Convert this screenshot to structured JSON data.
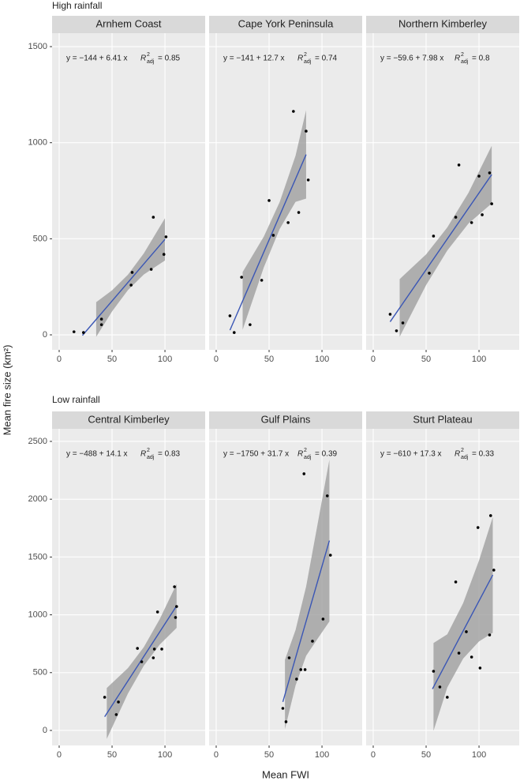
{
  "groups": [
    {
      "title": "High rainfall"
    },
    {
      "title": "Low rainfall"
    }
  ],
  "y_label": "Mean fire size (km²)",
  "x_label": "Mean FWI",
  "chart_data": [
    {
      "type": "scatter",
      "title": "Arnhem Coast",
      "equation": "y = −144 + 6.41 x",
      "r2": {
        "symbol": "R",
        "sup": "2",
        "sub": "adj",
        "value": "= 0.85"
      },
      "x": [
        14,
        23,
        40,
        40,
        69,
        68,
        89,
        87,
        99,
        101
      ],
      "values": [
        16,
        12,
        82,
        53,
        325,
        259,
        612,
        341,
        419,
        510
      ],
      "fit": {
        "intercept": -144,
        "slope": 6.41,
        "x": [
          22,
          100
        ]
      },
      "band": {
        "x": [
          35,
          50,
          65,
          80,
          100
        ],
        "lower": [
          -10,
          122,
          233,
          314,
          387
        ],
        "upper": [
          170,
          232,
          313,
          424,
          607
        ]
      },
      "color": "#000000",
      "line_color": "#3a56b5",
      "band_color": "#9a9a9a",
      "xlim": [
        -6.7,
        138
      ],
      "xticks": [
        0,
        50,
        100
      ],
      "ylim": [
        -78,
        1570
      ],
      "yticks": [
        0,
        500,
        1000,
        1500
      ]
    },
    {
      "type": "scatter",
      "title": "Cape York Peninsula",
      "equation": "y = −141 + 12.7 x",
      "r2": {
        "symbol": "R",
        "sup": "2",
        "sub": "adj",
        "value": "= 0.74"
      },
      "x": [
        13,
        17,
        24,
        32,
        43,
        50,
        54,
        68,
        73,
        78,
        85,
        87
      ],
      "values": [
        99,
        12,
        300,
        53,
        284,
        699,
        518,
        584,
        1163,
        637,
        1060,
        806
      ],
      "fit": {
        "intercept": -141,
        "slope": 12.7,
        "x": [
          13,
          85
        ]
      },
      "band": {
        "x": [
          25,
          45,
          60,
          75,
          85
        ],
        "lower": [
          27,
          351,
          551,
          692,
          709
        ],
        "upper": [
          327,
          511,
          691,
          932,
          1169
        ]
      },
      "color": "#000000",
      "line_color": "#3a56b5",
      "band_color": "#9a9a9a",
      "xlim": [
        -6.7,
        138
      ],
      "xticks": [
        0,
        50,
        100
      ],
      "ylim": [
        -78,
        1570
      ],
      "yticks": [
        0,
        500,
        1000,
        1500
      ]
    },
    {
      "type": "scatter",
      "title": "Northern Kimberley",
      "equation": "y = −59.6 + 7.98 x",
      "r2": {
        "symbol": "R",
        "sup": "2",
        "sub": "adj",
        "value": "= 0.8"
      },
      "x": [
        16,
        22,
        28,
        57,
        53,
        78,
        81,
        93,
        100,
        103,
        110,
        112
      ],
      "values": [
        107,
        21,
        62,
        514,
        321,
        612,
        884,
        584,
        826,
        625,
        843,
        682
      ],
      "fit": {
        "intercept": -59.6,
        "slope": 7.98,
        "x": [
          16,
          112
        ]
      },
      "band": {
        "x": [
          25,
          50,
          70,
          90,
          112
        ],
        "lower": [
          -10,
          259,
          439,
          579,
          684
        ],
        "upper": [
          290,
          419,
          559,
          739,
          984
        ]
      },
      "color": "#000000",
      "line_color": "#3a56b5",
      "band_color": "#9a9a9a",
      "xlim": [
        -6.7,
        138
      ],
      "xticks": [
        0,
        50,
        100
      ],
      "ylim": [
        -78,
        1570
      ],
      "yticks": [
        0,
        500,
        1000,
        1500
      ]
    },
    {
      "type": "scatter",
      "title": "Central Kimberley",
      "equation": "y = −488 + 14.1 x",
      "r2": {
        "symbol": "R",
        "sup": "2",
        "sub": "adj",
        "value": "= 0.83"
      },
      "x": [
        43,
        54,
        56,
        74,
        78,
        89,
        93,
        90,
        97,
        109,
        110,
        111
      ],
      "values": [
        287,
        137,
        246,
        710,
        594,
        628,
        1025,
        704,
        704,
        1243,
        977,
        1072
      ],
      "fit": {
        "intercept": -488,
        "slope": 14.1,
        "x": [
          43,
          111
        ]
      },
      "band": {
        "x": [
          45,
          65,
          80,
          95,
          111
        ],
        "lower": [
          -73,
          319,
          560,
          742,
          887
        ],
        "upper": [
          367,
          539,
          720,
          962,
          1267
        ]
      },
      "color": "#000000",
      "line_color": "#3a56b5",
      "band_color": "#9a9a9a",
      "xlim": [
        -6.7,
        138
      ],
      "xticks": [
        0,
        50,
        100
      ],
      "ylim": [
        -130,
        2609
      ],
      "yticks": [
        0,
        500,
        1000,
        1500,
        2000,
        2500
      ]
    },
    {
      "type": "scatter",
      "title": "Gulf Plains",
      "equation": "y = −1750 + 31.7 x",
      "r2": {
        "symbol": "R",
        "sup": "2",
        "sub": "adj",
        "value": "= 0.39"
      },
      "x": [
        63,
        66,
        69,
        76,
        80,
        84,
        83,
        91,
        101,
        105,
        108
      ],
      "values": [
        191,
        75,
        628,
        444,
        526,
        526,
        2220,
        772,
        963,
        2029,
        1516
      ],
      "fit": {
        "intercept": -1750,
        "slope": 31.7,
        "x": [
          63,
          107
        ]
      },
      "band": {
        "x": [
          65,
          75,
          85,
          95,
          107
        ],
        "lower": [
          11,
          388,
          645,
          782,
          942
        ],
        "upper": [
          611,
          868,
          1245,
          1742,
          2342
        ]
      },
      "color": "#000000",
      "line_color": "#3a56b5",
      "band_color": "#9a9a9a",
      "xlim": [
        -6.7,
        138
      ],
      "xticks": [
        0,
        50,
        100
      ],
      "ylim": [
        -130,
        2609
      ],
      "yticks": [
        0,
        500,
        1000,
        1500,
        2000,
        2500
      ]
    },
    {
      "type": "scatter",
      "title": "Sturt Plateau",
      "equation": "y = −610 + 17.3 x",
      "r2": {
        "symbol": "R",
        "sup": "2",
        "sub": "adj",
        "value": "= 0.33"
      },
      "x": [
        57,
        63,
        70,
        78,
        81,
        88,
        93,
        99,
        101,
        110,
        111,
        114
      ],
      "values": [
        512,
        376,
        287,
        1284,
        669,
        854,
        635,
        1755,
        540,
        826,
        1858,
        1387
      ],
      "fit": {
        "intercept": -610,
        "slope": 17.3,
        "x": [
          56,
          113
        ]
      },
      "band": {
        "x": [
          57,
          70,
          85,
          100,
          113
        ],
        "lower": [
          -4,
          371,
          621,
          770,
          845
        ],
        "upper": [
          756,
          831,
          1101,
          1470,
          1845
        ]
      },
      "color": "#000000",
      "line_color": "#3a56b5",
      "band_color": "#9a9a9a",
      "xlim": [
        -6.7,
        138
      ],
      "xticks": [
        0,
        50,
        100
      ],
      "ylim": [
        -130,
        2609
      ],
      "yticks": [
        0,
        500,
        1000,
        1500,
        2000,
        2500
      ]
    }
  ]
}
